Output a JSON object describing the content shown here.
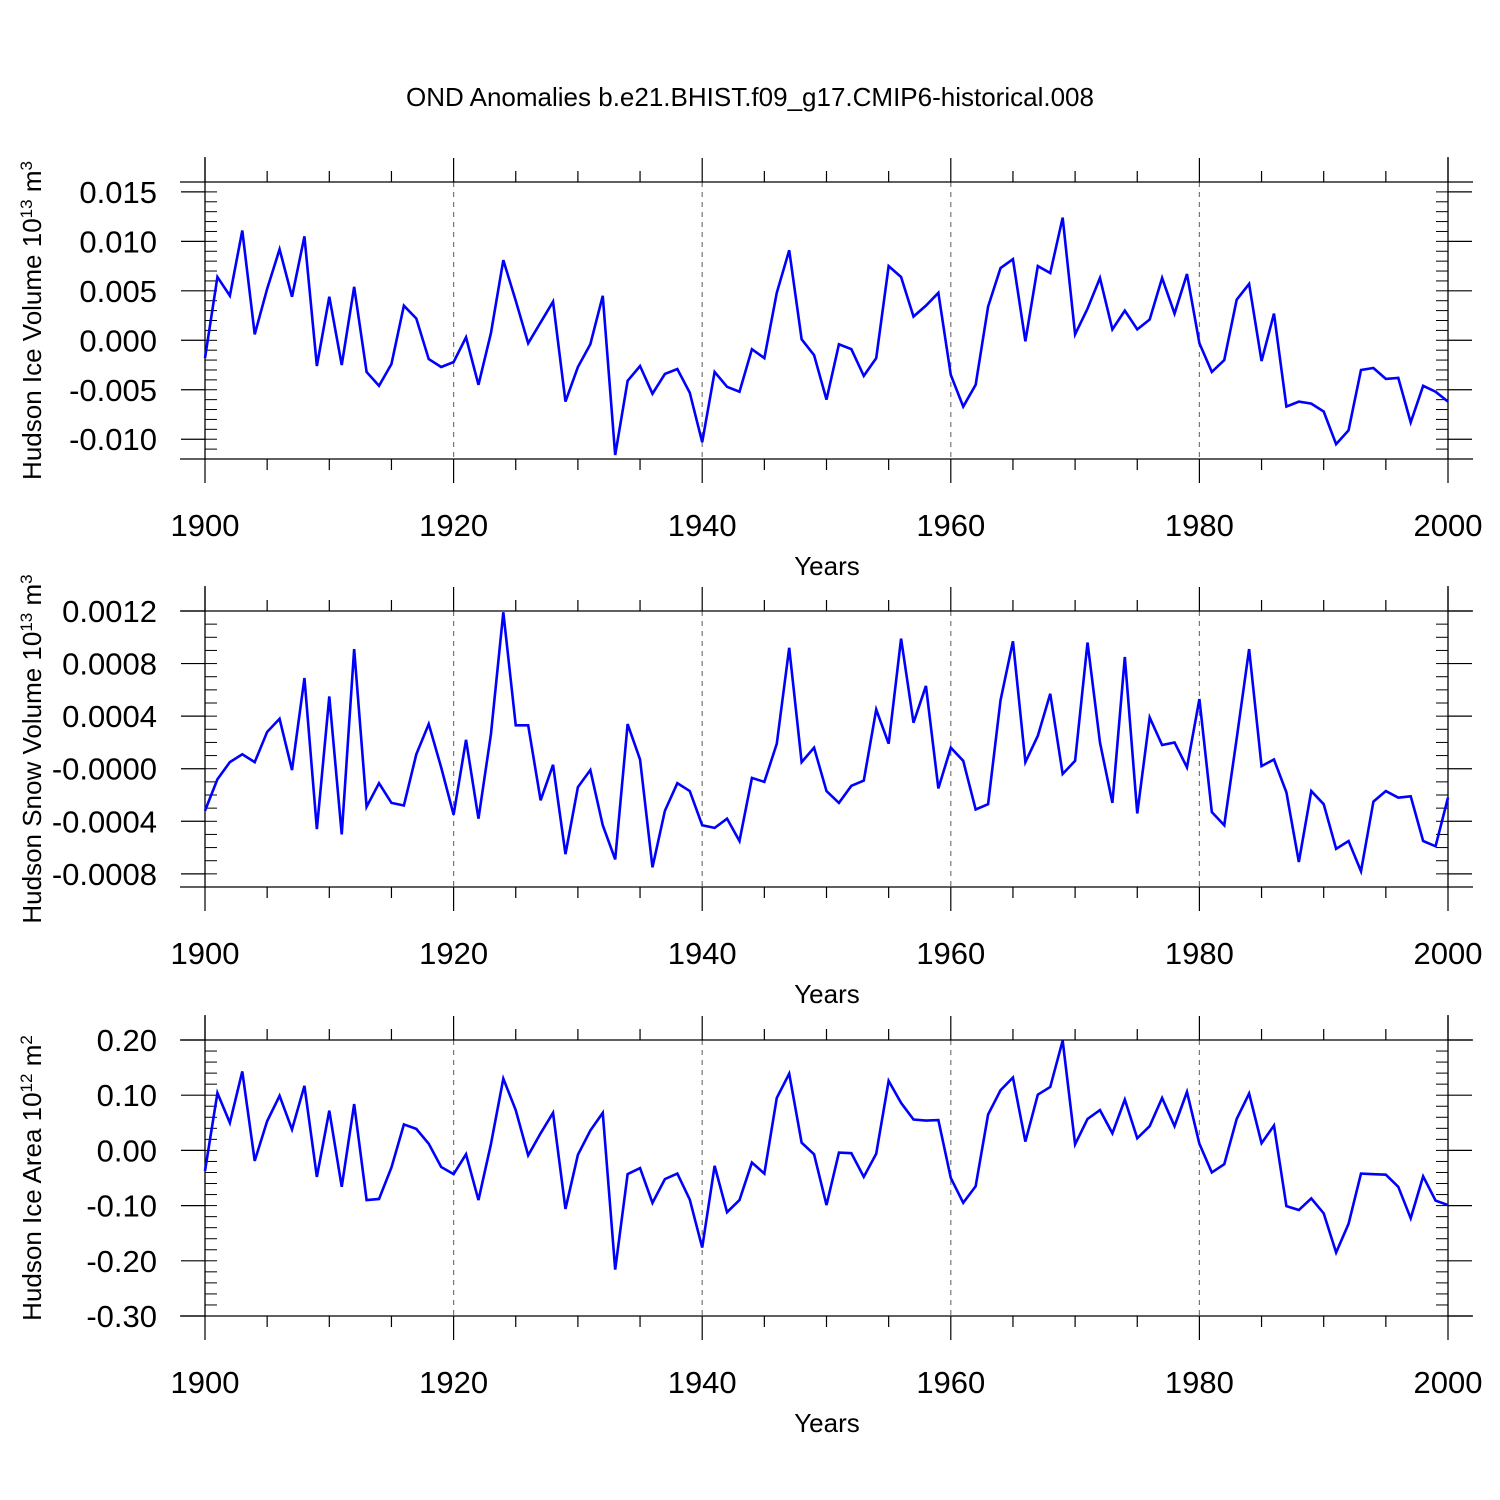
{
  "title": "OND Anomalies b.e21.BHIST.f09_g17.CMIP6-historical.008",
  "line_color": "#0000ff",
  "chart_data": [
    {
      "type": "line",
      "name": "panel-ice-volume",
      "title": "",
      "xlabel": "Years",
      "ylabel": "Hudson Ice Volume 10",
      "ylabel_sup": "13",
      "ylabel_unit": " m",
      "ylabel_unit_sup": "3",
      "xlim": [
        1900,
        2000
      ],
      "ylim": [
        -0.012,
        0.016
      ],
      "xticks": [
        1900,
        1920,
        1940,
        1960,
        1980,
        2000
      ],
      "xtick_labels": [
        "1900",
        "1920",
        "1940",
        "1960",
        "1980",
        "2000"
      ],
      "yticks": [
        -0.01,
        -0.005,
        0.0,
        0.005,
        0.01,
        0.015
      ],
      "ytick_labels": [
        "-0.010",
        "-0.005",
        "0.000",
        "0.005",
        "0.010",
        "0.015"
      ],
      "yminor": 0.001,
      "grid": "dashed vertical lines at major x ticks",
      "x_start": 1900,
      "values": [
        -0.0018,
        0.0064,
        0.0045,
        0.0111,
        0.0006,
        0.0052,
        0.0092,
        0.0044,
        0.0105,
        -0.0026,
        0.0044,
        -0.0025,
        0.0054,
        -0.0032,
        -0.0046,
        -0.0024,
        0.0035,
        0.0022,
        -0.0019,
        -0.0027,
        -0.0022,
        0.0003,
        -0.0045,
        0.0007,
        0.0081,
        0.004,
        -0.0003,
        0.0018,
        0.0039,
        -0.0062,
        -0.0027,
        -0.0004,
        0.0045,
        -0.0116,
        -0.0041,
        -0.0026,
        -0.0054,
        -0.0034,
        -0.0029,
        -0.0053,
        -0.0103,
        -0.0032,
        -0.0047,
        -0.0052,
        -0.0009,
        -0.0018,
        0.0048,
        0.0091,
        0.0001,
        -0.0015,
        -0.006,
        -0.0004,
        -0.0009,
        -0.0036,
        -0.0018,
        0.0075,
        0.0064,
        0.0024,
        0.0035,
        0.0048,
        -0.0035,
        -0.0067,
        -0.0045,
        0.0034,
        0.0073,
        0.0082,
        -0.0001,
        0.0075,
        0.0068,
        0.0124,
        0.0006,
        0.0032,
        0.0063,
        0.0011,
        0.003,
        0.0011,
        0.0021,
        0.0063,
        0.0027,
        0.0067,
        -0.0003,
        -0.0032,
        -0.002,
        0.0041,
        0.0057,
        -0.0021,
        0.0027,
        -0.0067,
        -0.0062,
        -0.0064,
        -0.0072,
        -0.0105,
        -0.0091,
        -0.003,
        -0.0028,
        -0.0039,
        -0.0038,
        -0.0083,
        -0.0046,
        -0.0052,
        -0.0062
      ]
    },
    {
      "type": "line",
      "name": "panel-snow-volume",
      "title": "",
      "xlabel": "Years",
      "ylabel": "Hudson Snow Volume 10",
      "ylabel_sup": "13",
      "ylabel_unit": " m",
      "ylabel_unit_sup": "3",
      "xlim": [
        1900,
        2000
      ],
      "ylim": [
        -0.0009,
        0.0012
      ],
      "xticks": [
        1900,
        1920,
        1940,
        1960,
        1980,
        2000
      ],
      "xtick_labels": [
        "1900",
        "1920",
        "1940",
        "1960",
        "1980",
        "2000"
      ],
      "yticks": [
        -0.0008,
        -0.0004,
        0.0,
        0.0004,
        0.0008,
        0.0012
      ],
      "ytick_labels": [
        "-0.0008",
        "-0.0004",
        "-0.0000",
        "0.0004",
        "0.0008",
        "0.0012"
      ],
      "yminor": 0.0001,
      "grid": "dashed vertical lines at major x ticks",
      "x_start": 1900,
      "values": [
        -0.00032,
        -8e-05,
        5e-05,
        0.00011,
        5e-05,
        0.00028,
        0.00038,
        -1e-05,
        0.00069,
        -0.00046,
        0.00055,
        -0.0005,
        0.00091,
        -0.00029,
        -0.00011,
        -0.00026,
        -0.00028,
        0.00011,
        0.00034,
        1e-05,
        -0.00035,
        0.00022,
        -0.00038,
        0.00026,
        0.00119,
        0.00033,
        0.00033,
        -0.00024,
        3e-05,
        -0.00065,
        -0.00014,
        -1e-05,
        -0.00043,
        -0.00069,
        0.00034,
        7e-05,
        -0.00075,
        -0.00032,
        -0.00011,
        -0.00017,
        -0.00043,
        -0.00045,
        -0.00038,
        -0.00055,
        -7e-05,
        -0.0001,
        0.00019,
        0.00092,
        5e-05,
        0.00016,
        -0.00017,
        -0.00026,
        -0.00013,
        -9e-05,
        0.00045,
        0.00019,
        0.00099,
        0.00035,
        0.00063,
        -0.00015,
        0.00016,
        6e-05,
        -0.00031,
        -0.00027,
        0.00052,
        0.00097,
        5e-05,
        0.00025,
        0.00057,
        -4e-05,
        6e-05,
        0.00096,
        0.0002,
        -0.00026,
        0.00085,
        -0.00034,
        0.00039,
        0.00018,
        0.0002,
        1e-05,
        0.00053,
        -0.00033,
        -0.00043,
        0.00023,
        0.00091,
        2e-05,
        7e-05,
        -0.00018,
        -0.00071,
        -0.00017,
        -0.00027,
        -0.00061,
        -0.00055,
        -0.00078,
        -0.00025,
        -0.00017,
        -0.00022,
        -0.00021,
        -0.00055,
        -0.00059,
        -0.00022
      ]
    },
    {
      "type": "line",
      "name": "panel-ice-area",
      "title": "",
      "xlabel": "Years",
      "ylabel": "Hudson Ice Area 10",
      "ylabel_sup": "12",
      "ylabel_unit": " m",
      "ylabel_unit_sup": "2",
      "xlim": [
        1900,
        2000
      ],
      "ylim": [
        -0.3,
        0.2
      ],
      "xticks": [
        1900,
        1920,
        1940,
        1960,
        1980,
        2000
      ],
      "xtick_labels": [
        "1900",
        "1920",
        "1940",
        "1960",
        "1980",
        "2000"
      ],
      "yticks": [
        -0.3,
        -0.2,
        -0.1,
        0.0,
        0.1,
        0.2
      ],
      "ytick_labels": [
        "-0.30",
        "-0.20",
        "-0.10",
        "0.00",
        "0.10",
        "0.20"
      ],
      "yminor": 0.02,
      "grid": "dashed vertical lines at major x ticks",
      "x_start": 1900,
      "values": [
        -0.037,
        0.104,
        0.05,
        0.143,
        -0.019,
        0.053,
        0.099,
        0.038,
        0.117,
        -0.048,
        0.072,
        -0.066,
        0.084,
        -0.09,
        -0.088,
        -0.031,
        0.047,
        0.039,
        0.012,
        -0.03,
        -0.043,
        -0.007,
        -0.09,
        0.011,
        0.13,
        0.073,
        -0.009,
        0.031,
        0.068,
        -0.106,
        -0.008,
        0.036,
        0.068,
        -0.216,
        -0.043,
        -0.032,
        -0.095,
        -0.052,
        -0.042,
        -0.089,
        -0.176,
        -0.028,
        -0.112,
        -0.09,
        -0.022,
        -0.042,
        0.095,
        0.139,
        0.014,
        -0.007,
        -0.099,
        -0.004,
        -0.005,
        -0.048,
        -0.006,
        0.126,
        0.086,
        0.056,
        0.054,
        0.055,
        -0.05,
        -0.095,
        -0.065,
        0.065,
        0.109,
        0.132,
        0.016,
        0.101,
        0.115,
        0.199,
        0.011,
        0.057,
        0.073,
        0.031,
        0.092,
        0.022,
        0.044,
        0.095,
        0.044,
        0.106,
        0.012,
        -0.04,
        -0.025,
        0.057,
        0.103,
        0.013,
        0.045,
        -0.101,
        -0.108,
        -0.087,
        -0.114,
        -0.185,
        -0.133,
        -0.042,
        -0.043,
        -0.044,
        -0.066,
        -0.123,
        -0.047,
        -0.091,
        -0.099
      ]
    }
  ]
}
